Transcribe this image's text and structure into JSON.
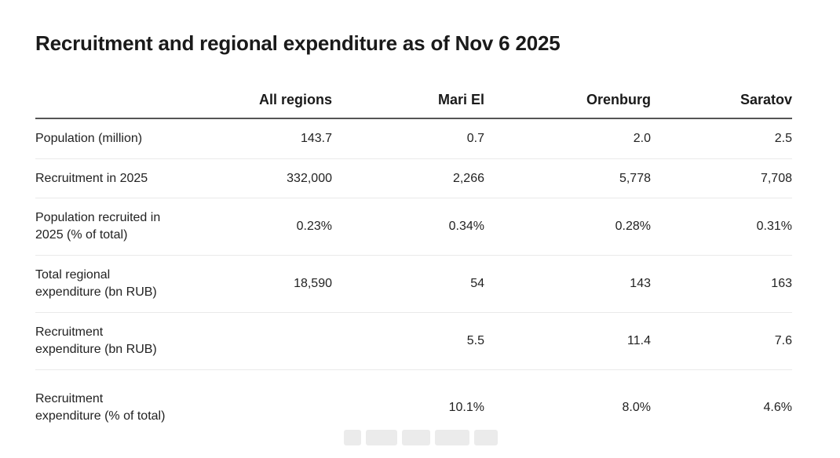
{
  "title": "Recruitment and regional expenditure as of Nov 6 2025",
  "table": {
    "columns": [
      "",
      "All regions",
      "Mari El",
      "Orenburg",
      "Saratov"
    ],
    "rows": [
      {
        "label": "Population (million)",
        "values": [
          "143.7",
          "0.7",
          "2.0",
          "2.5"
        ]
      },
      {
        "label": "Recruitment in 2025",
        "values": [
          "332,000",
          "2,266",
          "5,778",
          "7,708"
        ]
      },
      {
        "label": "Population recruited in 2025 (% of total)",
        "values": [
          "0.23%",
          "0.34%",
          "0.28%",
          "0.31%"
        ]
      },
      {
        "label": "Total regional expenditure (bn RUB)",
        "values": [
          "18,590",
          "54",
          "143",
          "163"
        ]
      },
      {
        "label": "Recruitment expenditure (bn RUB)",
        "values": [
          "",
          "5.5",
          "11.4",
          "7.6"
        ]
      },
      {
        "label": "Recruitment expenditure (% of total)",
        "values": [
          "",
          "10.1%",
          "8.0%",
          "4.6%"
        ]
      }
    ]
  }
}
